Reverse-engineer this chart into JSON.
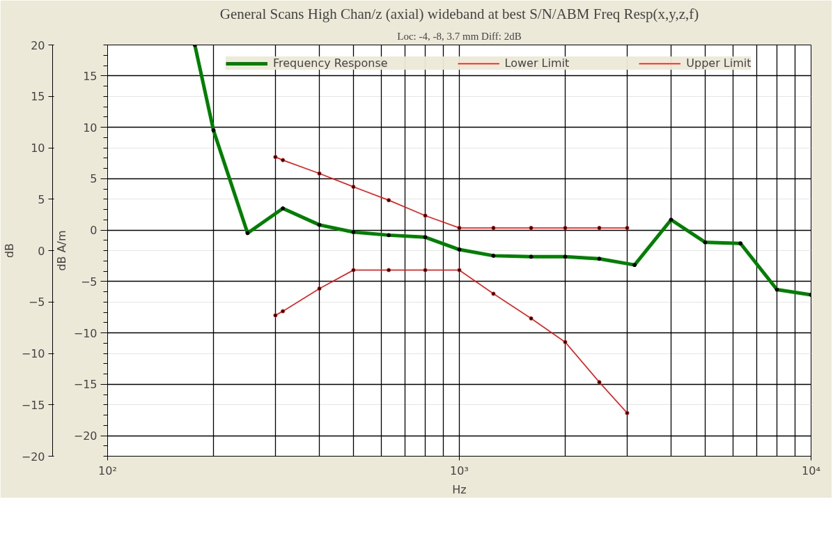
{
  "chart_data": {
    "type": "line",
    "title": "General Scans High Chan/z (axial) wideband at best S/N/ABM Freq Resp(x,y,z,f)",
    "subtitle": "Loc: -4, -8, 3.7 mm Diff: 2dB",
    "xlabel": "Hz",
    "ylabel": "dB",
    "y2label": "dB A/m",
    "log": "x",
    "grid": true,
    "legend": "top",
    "marker": "circle",
    "line_style": "solid",
    "xlim": [
      100,
      10000
    ],
    "xticks": [
      {
        "value": 100,
        "label": "10²"
      },
      {
        "value": 1000,
        "label": "10³"
      },
      {
        "value": 10000,
        "label": "10⁴"
      }
    ],
    "ylim": [
      -20,
      20
    ],
    "yticks": [
      -20,
      -15,
      -10,
      -5,
      0,
      5,
      10,
      15,
      20
    ],
    "y2lim": [
      -22,
      18
    ],
    "y2ticks": [
      -20,
      -15,
      -10,
      -5,
      0,
      5,
      10,
      15
    ],
    "series": [
      {
        "name": "Frequency Response",
        "color": "#008000",
        "axis": "y2",
        "x": [
          177,
          200,
          250,
          315,
          400,
          500,
          630,
          800,
          1000,
          1250,
          1600,
          2000,
          2500,
          3150,
          4000,
          5000,
          6300,
          8000,
          10000
        ],
        "values": [
          18,
          9.7,
          -0.3,
          2.1,
          0.5,
          -0.2,
          -0.5,
          -0.7,
          -1.9,
          -2.5,
          -2.6,
          -2.6,
          -2.8,
          -3.4,
          1.0,
          -1.2,
          -1.3,
          -5.8,
          -6.3
        ]
      },
      {
        "name": "Lower Limit",
        "color": "#ff0000",
        "axis": "y2",
        "x": [
          300,
          315,
          400,
          500,
          630,
          800,
          1000,
          1250,
          1600,
          2000,
          2500,
          3000
        ],
        "values": [
          -8.3,
          -7.9,
          -5.7,
          -3.9,
          -3.9,
          -3.9,
          -3.9,
          -6.2,
          -8.6,
          -10.9,
          -14.8,
          -17.8
        ]
      },
      {
        "name": "Upper Limit",
        "color": "#ff0000",
        "axis": "y2",
        "x": [
          300,
          315,
          400,
          500,
          630,
          800,
          1000,
          1250,
          1600,
          2000,
          2500,
          3000
        ],
        "values": [
          7.1,
          6.8,
          5.5,
          4.2,
          2.9,
          1.4,
          0.2,
          0.2,
          0.2,
          0.2,
          0.2,
          0.2
        ]
      }
    ]
  }
}
